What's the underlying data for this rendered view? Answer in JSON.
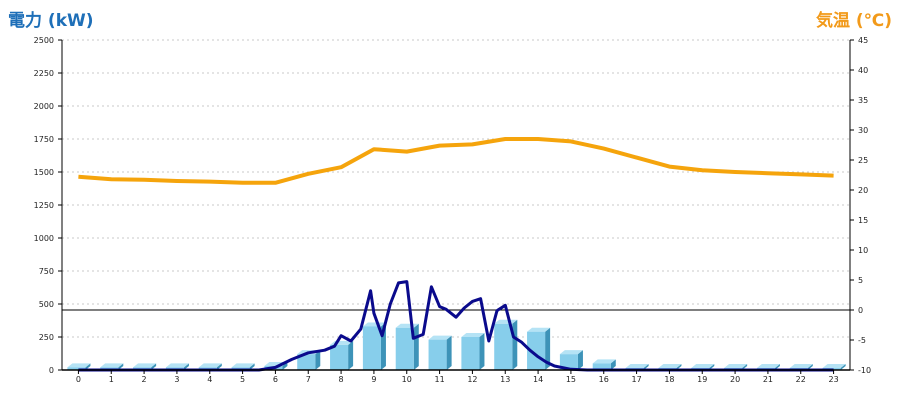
{
  "chart_data": {
    "type": "bar+line",
    "categories": [
      "0",
      "1",
      "2",
      "3",
      "4",
      "5",
      "6",
      "7",
      "8",
      "9",
      "10",
      "11",
      "12",
      "13",
      "14",
      "15",
      "16",
      "17",
      "18",
      "19",
      "20",
      "21",
      "22",
      "23"
    ],
    "left_axis": {
      "label": "電力 (kW)",
      "range": [
        0,
        2500
      ],
      "ticks": [
        0,
        250,
        500,
        750,
        1000,
        1250,
        1500,
        1750,
        2000,
        2250,
        2500
      ]
    },
    "right_axis": {
      "label": "気温 (℃)",
      "range": [
        -10,
        45
      ],
      "ticks": [
        -10,
        -5,
        0,
        5,
        10,
        15,
        20,
        25,
        30,
        35,
        40,
        45
      ]
    },
    "grid": true,
    "reference_line_temp": 0,
    "series": [
      {
        "kind": "bar",
        "axis": "left",
        "color": "#87ceeb",
        "values": [
          20,
          20,
          20,
          20,
          20,
          20,
          30,
          120,
          190,
          330,
          320,
          230,
          250,
          350,
          290,
          120,
          50,
          15,
          15,
          15,
          15,
          15,
          15,
          15
        ]
      },
      {
        "kind": "line",
        "axis": "left",
        "color": "#0a0a8c",
        "x": [
          0,
          1,
          2,
          3,
          4,
          5,
          5.5,
          6,
          6.5,
          7,
          7.5,
          7.8,
          8,
          8.3,
          8.6,
          8.9,
          9,
          9.25,
          9.5,
          9.75,
          10,
          10.2,
          10.5,
          10.75,
          11,
          11.2,
          11.5,
          11.75,
          12,
          12.25,
          12.5,
          12.75,
          13,
          13.25,
          13.5,
          13.75,
          14,
          14.25,
          14.5,
          15,
          15.5,
          16,
          16.5,
          17,
          18,
          19,
          20,
          21,
          22,
          23
        ],
        "values": [
          0,
          0,
          0,
          0,
          0,
          0,
          0,
          20,
          80,
          130,
          150,
          180,
          260,
          220,
          310,
          600,
          430,
          260,
          500,
          660,
          670,
          240,
          270,
          630,
          480,
          460,
          400,
          470,
          520,
          540,
          220,
          450,
          490,
          250,
          210,
          150,
          100,
          60,
          30,
          5,
          0,
          0,
          0,
          0,
          0,
          0,
          0,
          0,
          0,
          0
        ]
      },
      {
        "kind": "line",
        "axis": "right",
        "color": "#f5a40c",
        "values": [
          22.2,
          21.8,
          21.7,
          21.5,
          21.4,
          21.2,
          21.2,
          22.7,
          23.8,
          26.8,
          26.4,
          27.4,
          27.6,
          28.5,
          28.5,
          28.1,
          26.9,
          25.4,
          23.9,
          23.3,
          23.0,
          22.8,
          22.6,
          22.4
        ]
      }
    ]
  }
}
